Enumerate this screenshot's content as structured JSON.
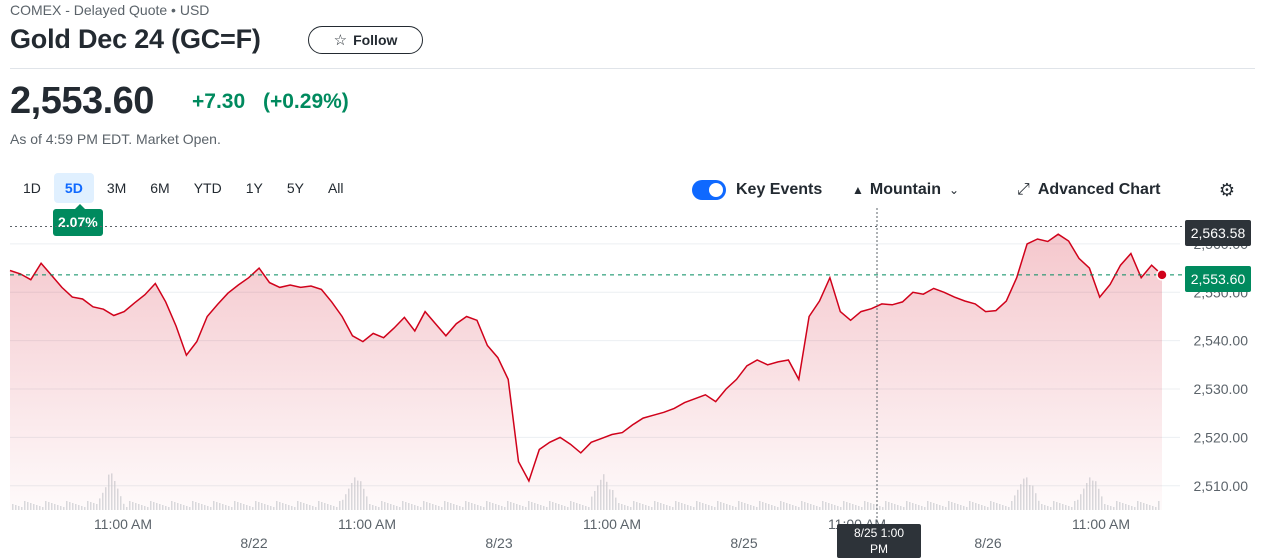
{
  "header": {
    "subtitle": "COMEX - Delayed Quote • USD",
    "title": "Gold Dec 24 (GC=F)",
    "follow_label": "Follow"
  },
  "quote": {
    "price": "2,553.60",
    "change": "+7.30",
    "change_pct": "(+0.29%)",
    "as_of": "As of 4:59 PM EDT. Market Open."
  },
  "ranges": [
    "1D",
    "5D",
    "3M",
    "6M",
    "YTD",
    "1Y",
    "5Y",
    "All"
  ],
  "active_range": "5D",
  "range_change": "2.07%",
  "toolbar": {
    "key_events_label": "Key Events",
    "key_events_on": true,
    "mountain_label": "Mountain",
    "advanced_chart_label": "Advanced Chart"
  },
  "colors": {
    "line": "#d0021b",
    "positive": "#008a5e",
    "accent": "#0f69ff"
  },
  "chart_data": {
    "type": "area",
    "ylim": [
      2505,
      2567
    ],
    "y_ticks": [
      "2,560.00",
      "2,550.00",
      "2,540.00",
      "2,530.00",
      "2,520.00",
      "2,510.00"
    ],
    "y_tick_values": [
      2560,
      2550,
      2540,
      2530,
      2520,
      2510
    ],
    "x_time_labels": [
      "11:00 AM",
      "11:00 AM",
      "11:00 AM",
      "11:00 AM",
      "11:00 AM"
    ],
    "x_date_labels": [
      "8/22",
      "8/23",
      "8/25",
      "8/26"
    ],
    "previous_close": "2,563.58",
    "previous_close_value": 2563.58,
    "last_price": "2,553.60",
    "last_price_value": 2553.6,
    "crosshair_label": "8/25 1:00 PM",
    "series": [
      {
        "values": [
          2554.5,
          2553.8,
          2552.6,
          2556.0,
          2553.5,
          2551.0,
          2549.0,
          2548.6,
          2547.0,
          2546.5,
          2545.2,
          2546.0,
          2547.8,
          2549.5,
          2551.8,
          2548.0,
          2543.0,
          2537.0,
          2539.8,
          2545.0,
          2547.5,
          2549.8,
          2551.5,
          2553.0,
          2555.0,
          2552.0,
          2551.0,
          2551.5,
          2551.0,
          2551.3,
          2550.6,
          2548.0,
          2545.0,
          2541.0,
          2539.8,
          2541.5,
          2540.6,
          2542.6,
          2544.8,
          2542.0,
          2546.0,
          2543.5,
          2541.0,
          2543.5,
          2545.0,
          2544.2,
          2539.0,
          2536.5,
          2532.0,
          2515.0,
          2511.0,
          2517.5,
          2519.0,
          2520.0,
          2518.6,
          2516.8,
          2519.0,
          2519.8,
          2520.6,
          2521.0,
          2522.6,
          2524.0,
          2524.6,
          2525.2,
          2526.0,
          2527.2,
          2528.0,
          2528.8,
          2527.4,
          2530.0,
          2532.0,
          2534.8,
          2536.0,
          2535.0,
          2535.6,
          2536.0,
          2532.0,
          2545.0,
          2548.2,
          2553.0,
          2546.0,
          2544.2,
          2546.0,
          2546.6,
          2547.6,
          2547.4,
          2548.0,
          2550.0,
          2549.6,
          2550.8,
          2550.0,
          2549.0,
          2548.2,
          2547.6,
          2546.0,
          2546.2,
          2548.2,
          2553.0,
          2560.0,
          2561.0,
          2560.5,
          2562.0,
          2560.6,
          2557.0,
          2555.0,
          2549.0,
          2551.6,
          2555.6,
          2558.0,
          2553.0,
          2555.6,
          2553.6
        ]
      }
    ]
  }
}
